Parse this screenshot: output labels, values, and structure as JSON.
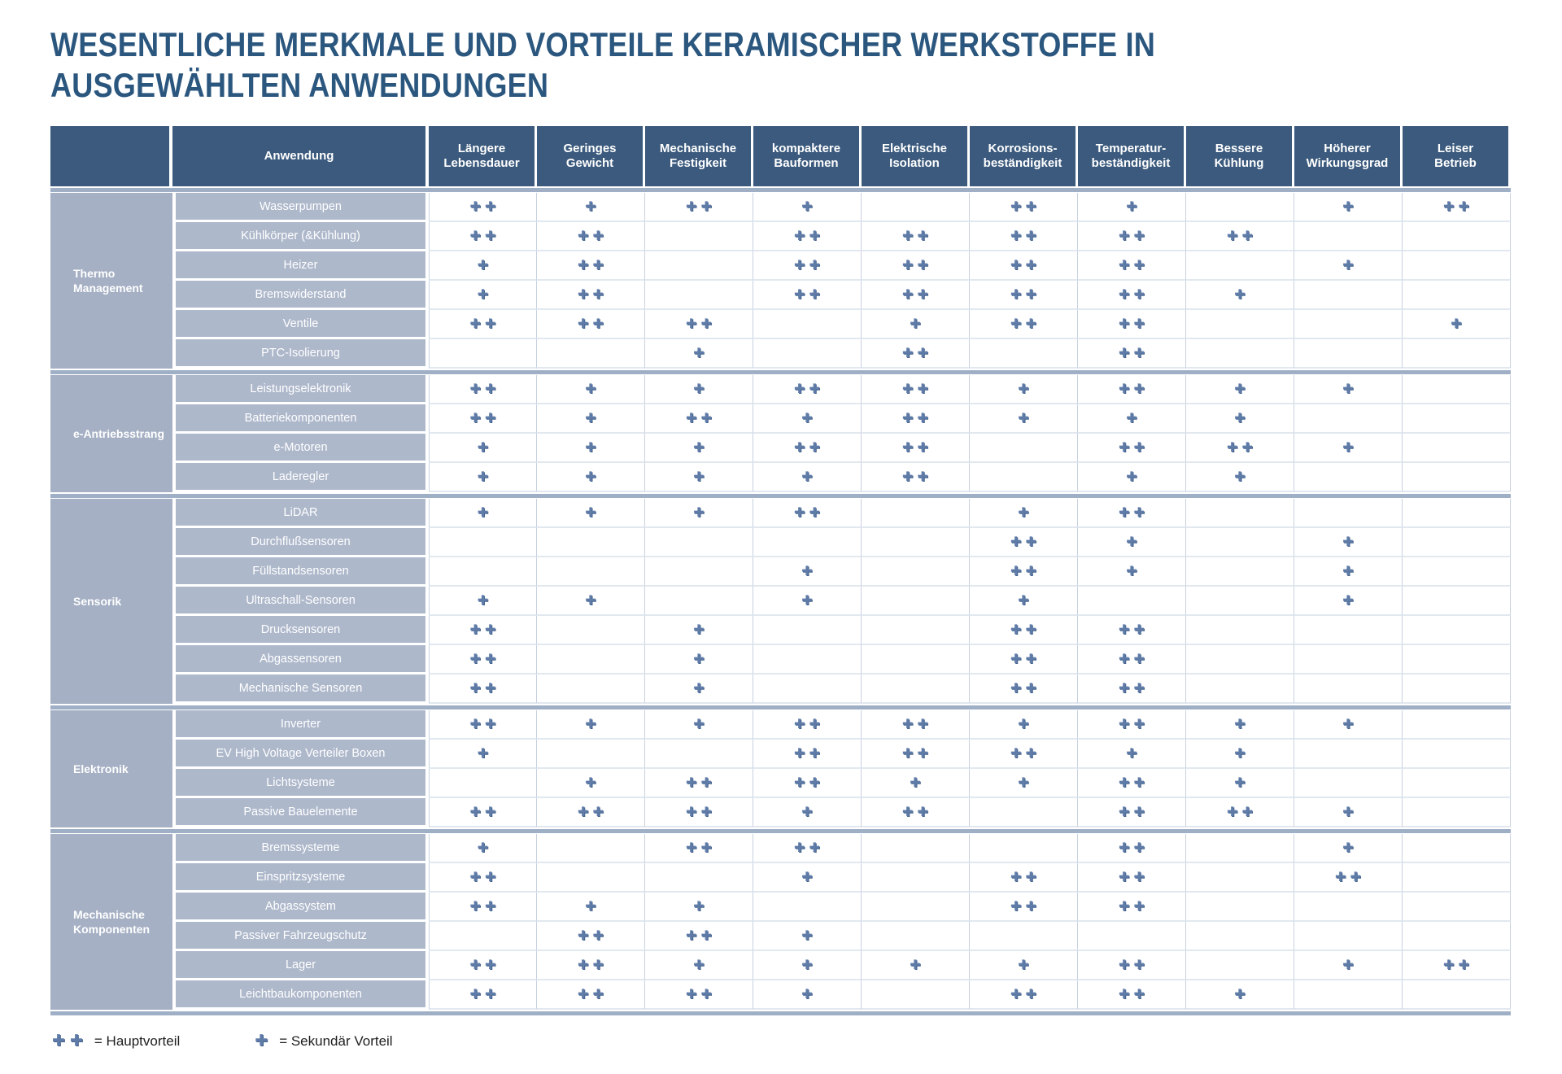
{
  "page": {
    "title_line1": "WESENTLICHE MERKMALE UND VORTEILE KERAMISCHER WERKSTOFFE IN",
    "title_line2": "AUSGEWÄHLTEN ANWENDUNGEN"
  },
  "colors": {
    "title_color": "#2b577f",
    "header_bg": "#3b5a7d",
    "group_bg": "#a5b0c4",
    "label_bg": "#aeb8cb",
    "plus": "#5f7ca8",
    "divider": "#9fb0c6"
  },
  "legend": {
    "main_symbol": "++",
    "main_label": "= Hauptvorteil",
    "secondary_symbol": "+",
    "secondary_label": "= Sekundär Vorteil"
  },
  "chart_data": {
    "type": "table",
    "title": "WESENTLICHE MERKMALE UND VORTEILE KERAMISCHER WERKSTOFFE IN AUSGEWÄHLTEN ANWENDUNGEN",
    "corner_header": "",
    "application_header": "Anwendung",
    "value_meaning": {
      "++": "Hauptvorteil",
      "+": "Sekundär Vorteil",
      "": "kein Vorteil angegeben"
    },
    "benefit_columns": [
      {
        "label": "Längere Lebensdauer",
        "lines": [
          "Längere",
          "Lebensdauer"
        ]
      },
      {
        "label": "Geringes Gewicht",
        "lines": [
          "Geringes",
          "Gewicht"
        ]
      },
      {
        "label": "Mechanische Festigkeit",
        "lines": [
          "Mechanische",
          "Festigkeit"
        ]
      },
      {
        "label": "kompaktere Bauformen",
        "lines": [
          "kompaktere",
          "Bauformen"
        ]
      },
      {
        "label": "Elektrische Isolation",
        "lines": [
          "Elektrische",
          "Isolation"
        ]
      },
      {
        "label": "Korrosionsbeständigkeit",
        "lines": [
          "Korrosions-",
          "beständigkeit"
        ]
      },
      {
        "label": "Temperaturbeständigkeit",
        "lines": [
          "Temperatur-",
          "beständigkeit"
        ]
      },
      {
        "label": "Bessere Kühlung",
        "lines": [
          "Bessere",
          "Kühlung"
        ]
      },
      {
        "label": "Höherer Wirkungsgrad",
        "lines": [
          "Höherer",
          "Wirkungsgrad"
        ]
      },
      {
        "label": "Leiser Betrieb",
        "lines": [
          "Leiser",
          "Betrieb"
        ]
      }
    ],
    "groups": [
      {
        "name": "Thermo Management",
        "rows": [
          {
            "label": "Wasserpumpen",
            "values": [
              "++",
              "+",
              "++",
              "+",
              "",
              "++",
              "+",
              "",
              "+",
              "++"
            ]
          },
          {
            "label": "Kühlkörper (&Kühlung)",
            "values": [
              "++",
              "++",
              "",
              "++",
              "++",
              "++",
              "++",
              "++",
              "",
              ""
            ]
          },
          {
            "label": "Heizer",
            "values": [
              "+",
              "++",
              "",
              "++",
              "++",
              "++",
              "++",
              "",
              "+",
              ""
            ]
          },
          {
            "label": "Bremswiderstand",
            "values": [
              "+",
              "++",
              "",
              "++",
              "++",
              "++",
              "++",
              "+",
              "",
              ""
            ]
          },
          {
            "label": "Ventile",
            "values": [
              "++",
              "++",
              "++",
              "",
              "+",
              "++",
              "++",
              "",
              "",
              "+"
            ]
          },
          {
            "label": "PTC-Isolierung",
            "values": [
              "",
              "",
              "+",
              "",
              "++",
              "",
              "++",
              "",
              "",
              ""
            ]
          }
        ]
      },
      {
        "name": "e-Antriebsstrang",
        "rows": [
          {
            "label": "Leistungselektronik",
            "values": [
              "++",
              "+",
              "+",
              "++",
              "++",
              "+",
              "++",
              "+",
              "+",
              ""
            ]
          },
          {
            "label": "Batteriekomponenten",
            "values": [
              "++",
              "+",
              "++",
              "+",
              "++",
              "+",
              "+",
              "+",
              "",
              ""
            ]
          },
          {
            "label": "e-Motoren",
            "values": [
              "+",
              "+",
              "+",
              "++",
              "++",
              "",
              "++",
              "++",
              "+",
              ""
            ]
          },
          {
            "label": "Laderegler",
            "values": [
              "+",
              "+",
              "+",
              "+",
              "++",
              "",
              "+",
              "+",
              "",
              ""
            ]
          }
        ]
      },
      {
        "name": "Sensorik",
        "rows": [
          {
            "label": "LiDAR",
            "values": [
              "+",
              "+",
              "+",
              "++",
              "",
              "+",
              "++",
              "",
              "",
              ""
            ]
          },
          {
            "label": "Durchflußsensoren",
            "values": [
              "",
              "",
              "",
              "",
              "",
              "++",
              "+",
              "",
              "+",
              ""
            ]
          },
          {
            "label": "Füllstandsensoren",
            "values": [
              "",
              "",
              "",
              "+",
              "",
              "++",
              "+",
              "",
              "+",
              ""
            ]
          },
          {
            "label": "Ultraschall-Sensoren",
            "values": [
              "+",
              "+",
              "",
              "+",
              "",
              "+",
              "",
              "",
              "+",
              ""
            ]
          },
          {
            "label": "Drucksensoren",
            "values": [
              "++",
              "",
              "+",
              "",
              "",
              "++",
              "++",
              "",
              "",
              ""
            ]
          },
          {
            "label": "Abgassensoren",
            "values": [
              "++",
              "",
              "+",
              "",
              "",
              "++",
              "++",
              "",
              "",
              ""
            ]
          },
          {
            "label": "Mechanische Sensoren",
            "values": [
              "++",
              "",
              "+",
              "",
              "",
              "++",
              "++",
              "",
              "",
              ""
            ]
          }
        ]
      },
      {
        "name": "Elektronik",
        "rows": [
          {
            "label": "Inverter",
            "values": [
              "++",
              "+",
              "+",
              "++",
              "++",
              "+",
              "++",
              "+",
              "+",
              ""
            ]
          },
          {
            "label": "EV High Voltage Verteiler Boxen",
            "values": [
              "+",
              "",
              "",
              "++",
              "++",
              "++",
              "+",
              "+",
              "",
              ""
            ]
          },
          {
            "label": "Lichtsysteme",
            "values": [
              "",
              "+",
              "++",
              "++",
              "+",
              "+",
              "++",
              "+",
              "",
              ""
            ]
          },
          {
            "label": "Passive Bauelemente",
            "values": [
              "++",
              "++",
              "++",
              "+",
              "++",
              "",
              "++",
              "++",
              "+",
              ""
            ]
          }
        ]
      },
      {
        "name": "Mechanische Komponenten",
        "rows": [
          {
            "label": "Bremssysteme",
            "values": [
              "+",
              "",
              "++",
              "++",
              "",
              "",
              "++",
              "",
              "+",
              ""
            ]
          },
          {
            "label": "Einspritzsysteme",
            "values": [
              "++",
              "",
              "",
              "+",
              "",
              "++",
              "++",
              "",
              "++",
              ""
            ]
          },
          {
            "label": "Abgassystem",
            "values": [
              "++",
              "+",
              "+",
              "",
              "",
              "++",
              "++",
              "",
              "",
              ""
            ]
          },
          {
            "label": "Passiver Fahrzeugschutz",
            "values": [
              "",
              "++",
              "++",
              "+",
              "",
              "",
              "",
              "",
              "",
              ""
            ]
          },
          {
            "label": "Lager",
            "values": [
              "++",
              "++",
              "+",
              "+",
              "+",
              "+",
              "++",
              "",
              "+",
              "++"
            ]
          },
          {
            "label": "Leichtbaukomponenten",
            "values": [
              "++",
              "++",
              "++",
              "+",
              "",
              "++",
              "++",
              "+",
              "",
              ""
            ]
          }
        ]
      }
    ]
  }
}
